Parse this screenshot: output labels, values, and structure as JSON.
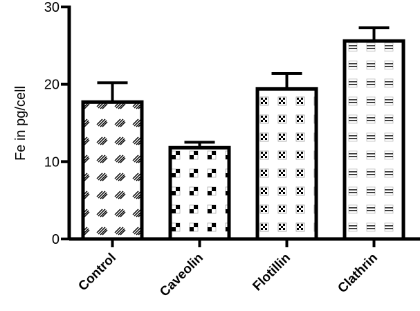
{
  "chart_data": {
    "type": "bar",
    "title": "",
    "xlabel": "",
    "ylabel": "Fe in pg/cell",
    "ylim": [
      0,
      30
    ],
    "yticks": [
      0,
      10,
      20,
      30
    ],
    "categories": [
      "Control",
      "Caveolin",
      "Flotillin",
      "Clathrin"
    ],
    "values": [
      17.7,
      11.8,
      19.4,
      25.6
    ],
    "error_upper": [
      20.2,
      12.5,
      21.4,
      27.3
    ],
    "patterns": [
      "diagonal-hatch",
      "checker",
      "dotted-checker",
      "double-dash"
    ],
    "grid": false,
    "colors": {
      "stroke": "#000000",
      "fill": "#ffffff"
    }
  }
}
